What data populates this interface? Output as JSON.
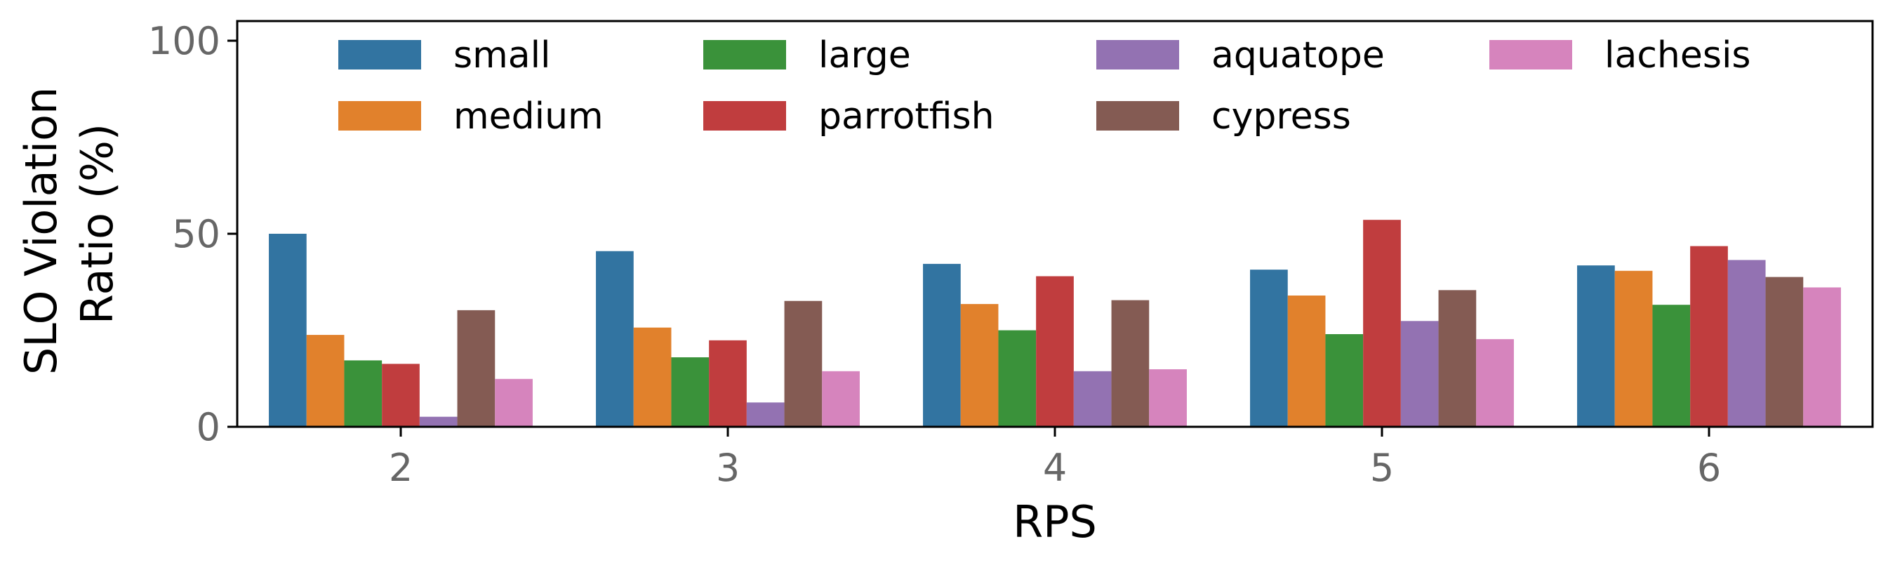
{
  "chart_data": {
    "type": "bar",
    "xlabel": "RPS",
    "ylabel": "SLO Violation Ratio (%)",
    "ylabel_lines": [
      "SLO Violation",
      "Ratio (%)"
    ],
    "ylim": [
      0,
      100
    ],
    "yticks": [
      "0",
      "50",
      "100"
    ],
    "categories": [
      "2",
      "3",
      "4",
      "5",
      "6"
    ],
    "legend_placement": "top",
    "grid": false,
    "series": [
      {
        "name": "small",
        "color": "#3274a1",
        "values": [
          50,
          45.5,
          42.2,
          40.7,
          41.8
        ]
      },
      {
        "name": "medium",
        "color": "#e1812c",
        "values": [
          23.8,
          25.7,
          31.8,
          34,
          40.4
        ]
      },
      {
        "name": "large",
        "color": "#3a923a",
        "values": [
          17.2,
          18,
          25,
          24,
          31.6
        ]
      },
      {
        "name": "parrotfish",
        "color": "#c03d3e",
        "values": [
          16.3,
          22.4,
          39,
          53.6,
          46.8
        ]
      },
      {
        "name": "aquatope",
        "color": "#9372b2",
        "values": [
          2.6,
          6.3,
          14.4,
          27.4,
          43.2
        ]
      },
      {
        "name": "cypress",
        "color": "#845b53",
        "values": [
          30.2,
          32.6,
          32.8,
          35.4,
          38.8
        ]
      },
      {
        "name": "lachesis",
        "color": "#d684bd",
        "values": [
          12.4,
          14.4,
          14.9,
          22.7,
          36.1
        ]
      }
    ]
  }
}
